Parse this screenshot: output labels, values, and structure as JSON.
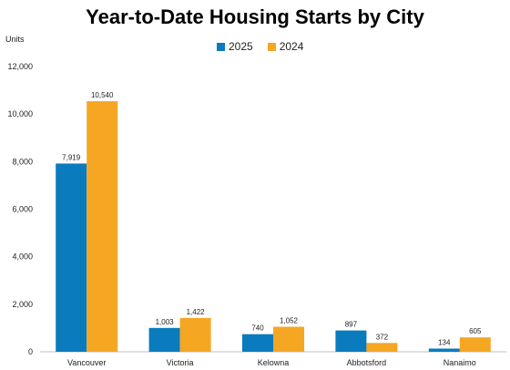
{
  "chart_data": {
    "type": "bar",
    "title": "Year-to-Date Housing Starts by City",
    "ylabel": "Units",
    "xlabel": "",
    "categories": [
      "Vancouver",
      "Victoria",
      "Kelowna",
      "Abbotsford",
      "Nanaimo"
    ],
    "series": [
      {
        "name": "2025",
        "color": "#0a7bbd",
        "values": [
          7919,
          1003,
          740,
          897,
          134
        ],
        "labels": [
          "7,919",
          "1,003",
          "740",
          "897",
          "134"
        ]
      },
      {
        "name": "2024",
        "color": "#f5a623",
        "values": [
          10540,
          1422,
          1052,
          372,
          605
        ],
        "labels": [
          "10,540",
          "1,422",
          "1,052",
          "372",
          "605"
        ]
      }
    ],
    "ylim": [
      0,
      12000
    ],
    "yticks": [
      0,
      2000,
      4000,
      6000,
      8000,
      10000,
      12000
    ],
    "ytick_labels": [
      "0",
      "2,000",
      "4,000",
      "6,000",
      "8,000",
      "10,000",
      "12,000"
    ],
    "grid": false,
    "legend_position": "top"
  }
}
